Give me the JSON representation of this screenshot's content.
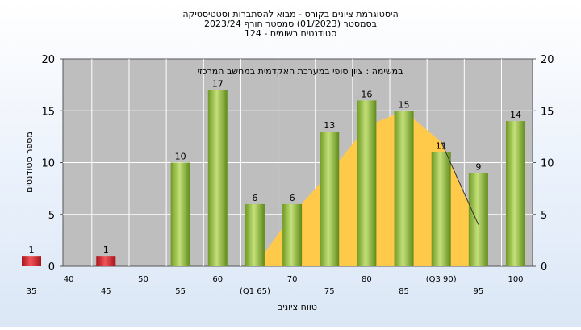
{
  "chart_data": {
    "type": "bar",
    "title_lines": [
      "היסטוגרמת ציונים בקורס - מבוא להסתברות וסטטיסטיקה",
      "בסמסטר  (01/2023)  סמסטר חורף  2023/24",
      "סטודנטים רשומים - 124"
    ],
    "annotation": "במשימה : ציון סופי במערכת האקדמית במחשב המרכזי",
    "xlabel": "טווח ציונים",
    "ylabel": "מספר סטודנטים",
    "ylim": [
      0,
      20
    ],
    "yticks": [
      0,
      5,
      10,
      15,
      20
    ],
    "categories": [
      35,
      40,
      45,
      50,
      55,
      60,
      65,
      70,
      75,
      80,
      85,
      90,
      95,
      100
    ],
    "values": [
      1,
      0,
      1,
      0,
      10,
      17,
      6,
      6,
      13,
      16,
      15,
      11,
      9,
      14
    ],
    "x_tick_labels": [
      "35",
      "40",
      "45",
      "50",
      "55",
      "60",
      "(Q1 65)",
      "70",
      "75",
      "80",
      "85",
      "(Q3 90)",
      "95",
      "100"
    ],
    "fail_threshold": 55,
    "grid": true,
    "distribution_curve": {
      "x": [
        65,
        70,
        75,
        80,
        85,
        90,
        95
      ],
      "y": [
        0,
        5,
        9,
        13.5,
        15,
        12,
        4
      ]
    },
    "colors": {
      "bar_pass": "#8fb83a",
      "bar_fail": "#d8232a",
      "area": "#ffc94a",
      "plot_bg": "#bebebe",
      "grid": "#ffffff"
    }
  }
}
